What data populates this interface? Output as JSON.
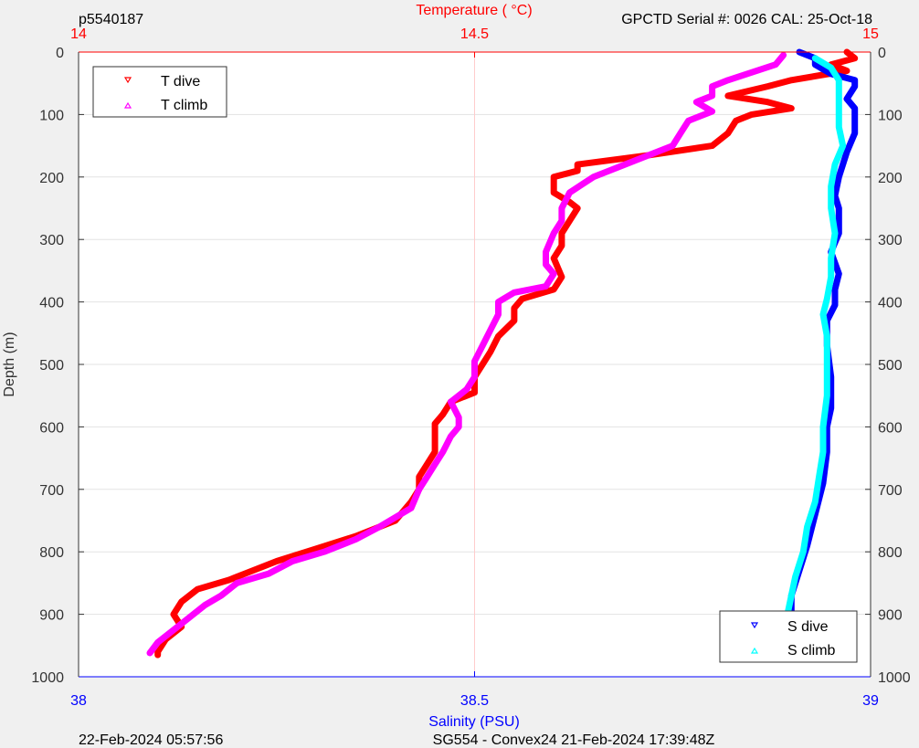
{
  "header": {
    "profile_id": "p5540187",
    "temperature_axis_title": "Temperature (    °C)",
    "serial_cal": "GPCTD Serial #: 0026 CAL: 25-Oct-18"
  },
  "footer": {
    "left_date": "22-Feb-2024 05:57:56",
    "mission": "SG554 - Convex24 21-Feb-2024 17:39:48Z"
  },
  "colors": {
    "t_dive": "#ff0000",
    "t_climb": "#ff00ff",
    "s_dive": "#0000ff",
    "s_climb": "#00ffff",
    "temperature_axis": "#ff0000",
    "salinity_axis": "#0000ff"
  },
  "chart_data": {
    "type": "line",
    "title": "",
    "xlabel": "Salinity (PSU)",
    "x2label": "Temperature (    °C)",
    "ylabel": "Depth (m)",
    "ylim": [
      1000,
      0
    ],
    "y_reversed": true,
    "temperature_xlim": [
      14,
      15
    ],
    "salinity_xlim": [
      38,
      39
    ],
    "temperature_ticks": [
      "14",
      "14.5",
      "15"
    ],
    "salinity_ticks": [
      "38",
      "38.5",
      "39"
    ],
    "depth_ticks": [
      "0",
      "100",
      "200",
      "300",
      "400",
      "500",
      "600",
      "700",
      "800",
      "900",
      "1000"
    ],
    "grid": true,
    "legend_temperature": {
      "placement": "top-left",
      "entries": [
        "T dive",
        "T climb"
      ]
    },
    "legend_salinity": {
      "placement": "bottom-right",
      "entries": [
        "S dive",
        "S climb"
      ]
    },
    "series": [
      {
        "name": "T dive",
        "axis": "temperature",
        "marker": "down-triangle",
        "points": [
          [
            14.97,
            0
          ],
          [
            14.98,
            10
          ],
          [
            14.95,
            20
          ],
          [
            14.97,
            30
          ],
          [
            14.9,
            45
          ],
          [
            14.87,
            55
          ],
          [
            14.82,
            70
          ],
          [
            14.87,
            80
          ],
          [
            14.9,
            90
          ],
          [
            14.85,
            100
          ],
          [
            14.83,
            110
          ],
          [
            14.82,
            130
          ],
          [
            14.8,
            150
          ],
          [
            14.72,
            165
          ],
          [
            14.63,
            180
          ],
          [
            14.63,
            190
          ],
          [
            14.6,
            200
          ],
          [
            14.6,
            225
          ],
          [
            14.62,
            240
          ],
          [
            14.63,
            250
          ],
          [
            14.62,
            270
          ],
          [
            14.61,
            290
          ],
          [
            14.61,
            310
          ],
          [
            14.6,
            330
          ],
          [
            14.61,
            360
          ],
          [
            14.6,
            380
          ],
          [
            14.56,
            395
          ],
          [
            14.55,
            410
          ],
          [
            14.55,
            430
          ],
          [
            14.53,
            455
          ],
          [
            14.52,
            480
          ],
          [
            14.51,
            500
          ],
          [
            14.5,
            520
          ],
          [
            14.5,
            545
          ],
          [
            14.47,
            560
          ],
          [
            14.46,
            580
          ],
          [
            14.45,
            595
          ],
          [
            14.45,
            610
          ],
          [
            14.45,
            640
          ],
          [
            14.44,
            660
          ],
          [
            14.43,
            680
          ],
          [
            14.43,
            700
          ],
          [
            14.42,
            720
          ],
          [
            14.4,
            750
          ],
          [
            14.35,
            775
          ],
          [
            14.3,
            795
          ],
          [
            14.25,
            815
          ],
          [
            14.22,
            830
          ],
          [
            14.19,
            845
          ],
          [
            14.15,
            860
          ],
          [
            14.13,
            880
          ],
          [
            14.12,
            900
          ],
          [
            14.13,
            920
          ],
          [
            14.11,
            940
          ],
          [
            14.1,
            960
          ],
          [
            14.1,
            965
          ]
        ]
      },
      {
        "name": "T climb",
        "axis": "temperature",
        "marker": "up-triangle",
        "points": [
          [
            14.89,
            5
          ],
          [
            14.88,
            20
          ],
          [
            14.82,
            45
          ],
          [
            14.8,
            55
          ],
          [
            14.8,
            70
          ],
          [
            14.78,
            80
          ],
          [
            14.8,
            95
          ],
          [
            14.77,
            110
          ],
          [
            14.76,
            130
          ],
          [
            14.75,
            150
          ],
          [
            14.72,
            165
          ],
          [
            14.69,
            180
          ],
          [
            14.65,
            200
          ],
          [
            14.62,
            225
          ],
          [
            14.61,
            250
          ],
          [
            14.61,
            270
          ],
          [
            14.6,
            290
          ],
          [
            14.59,
            320
          ],
          [
            14.59,
            340
          ],
          [
            14.6,
            355
          ],
          [
            14.59,
            375
          ],
          [
            14.55,
            385
          ],
          [
            14.53,
            400
          ],
          [
            14.53,
            420
          ],
          [
            14.52,
            445
          ],
          [
            14.51,
            470
          ],
          [
            14.5,
            495
          ],
          [
            14.5,
            520
          ],
          [
            14.49,
            540
          ],
          [
            14.47,
            560
          ],
          [
            14.48,
            585
          ],
          [
            14.48,
            600
          ],
          [
            14.47,
            615
          ],
          [
            14.46,
            640
          ],
          [
            14.45,
            660
          ],
          [
            14.44,
            680
          ],
          [
            14.43,
            700
          ],
          [
            14.42,
            730
          ],
          [
            14.38,
            760
          ],
          [
            14.35,
            780
          ],
          [
            14.31,
            800
          ],
          [
            14.27,
            815
          ],
          [
            14.24,
            835
          ],
          [
            14.2,
            850
          ],
          [
            14.18,
            870
          ],
          [
            14.16,
            885
          ],
          [
            14.14,
            905
          ],
          [
            14.12,
            925
          ],
          [
            14.1,
            945
          ],
          [
            14.09,
            962
          ]
        ]
      },
      {
        "name": "S dive",
        "axis": "salinity",
        "marker": "down-triangle",
        "points": [
          [
            38.91,
            0
          ],
          [
            38.93,
            10
          ],
          [
            38.93,
            20
          ],
          [
            38.95,
            35
          ],
          [
            38.98,
            45
          ],
          [
            38.98,
            55
          ],
          [
            38.97,
            75
          ],
          [
            38.98,
            90
          ],
          [
            38.98,
            110
          ],
          [
            38.98,
            130
          ],
          [
            38.97,
            160
          ],
          [
            38.96,
            200
          ],
          [
            38.955,
            230
          ],
          [
            38.96,
            250
          ],
          [
            38.96,
            290
          ],
          [
            38.95,
            320
          ],
          [
            38.96,
            355
          ],
          [
            38.955,
            380
          ],
          [
            38.955,
            405
          ],
          [
            38.945,
            430
          ],
          [
            38.945,
            470
          ],
          [
            38.95,
            520
          ],
          [
            38.95,
            570
          ],
          [
            38.945,
            600
          ],
          [
            38.945,
            640
          ],
          [
            38.94,
            690
          ],
          [
            38.93,
            740
          ],
          [
            38.92,
            790
          ],
          [
            38.91,
            830
          ],
          [
            38.9,
            870
          ],
          [
            38.9,
            910
          ],
          [
            38.89,
            940
          ],
          [
            38.89,
            960
          ]
        ]
      },
      {
        "name": "S climb",
        "axis": "salinity",
        "marker": "up-triangle",
        "points": [
          [
            38.93,
            10
          ],
          [
            38.95,
            25
          ],
          [
            38.96,
            45
          ],
          [
            38.96,
            60
          ],
          [
            38.96,
            75
          ],
          [
            38.96,
            95
          ],
          [
            38.96,
            120
          ],
          [
            38.965,
            150
          ],
          [
            38.955,
            180
          ],
          [
            38.95,
            215
          ],
          [
            38.95,
            250
          ],
          [
            38.955,
            290
          ],
          [
            38.95,
            330
          ],
          [
            38.95,
            360
          ],
          [
            38.945,
            395
          ],
          [
            38.94,
            420
          ],
          [
            38.945,
            455
          ],
          [
            38.945,
            500
          ],
          [
            38.945,
            550
          ],
          [
            38.94,
            600
          ],
          [
            38.94,
            640
          ],
          [
            38.935,
            680
          ],
          [
            38.93,
            720
          ],
          [
            38.92,
            760
          ],
          [
            38.915,
            800
          ],
          [
            38.905,
            840
          ],
          [
            38.9,
            870
          ],
          [
            38.895,
            900
          ],
          [
            38.89,
            930
          ],
          [
            38.885,
            963
          ]
        ]
      }
    ]
  }
}
